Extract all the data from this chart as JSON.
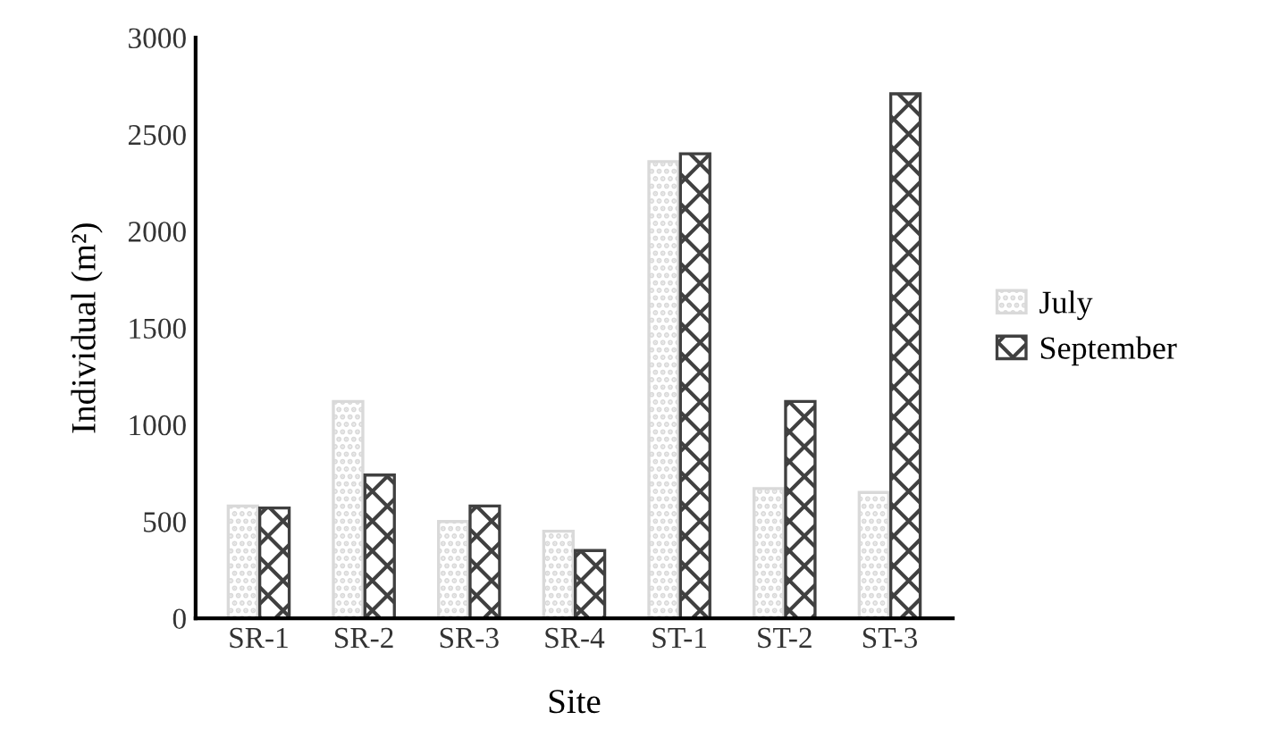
{
  "chart_data": {
    "type": "bar",
    "xlabel": "Site",
    "ylabel": "Individual (m²)",
    "categories": [
      "SR-1",
      "SR-2",
      "SR-3",
      "SR-4",
      "ST-1",
      "ST-2",
      "ST-3"
    ],
    "series": [
      {
        "name": "July",
        "color": "#d9d9d9",
        "values": [
          580,
          1120,
          500,
          450,
          2360,
          670,
          650
        ]
      },
      {
        "name": "September",
        "color": "#404040",
        "values": [
          570,
          740,
          580,
          350,
          2400,
          1120,
          2710
        ]
      }
    ],
    "ylim": [
      0,
      3000
    ],
    "yticks": [
      0,
      500,
      1000,
      1500,
      2000,
      2500,
      3000
    ],
    "grid": false,
    "legend": "right"
  }
}
